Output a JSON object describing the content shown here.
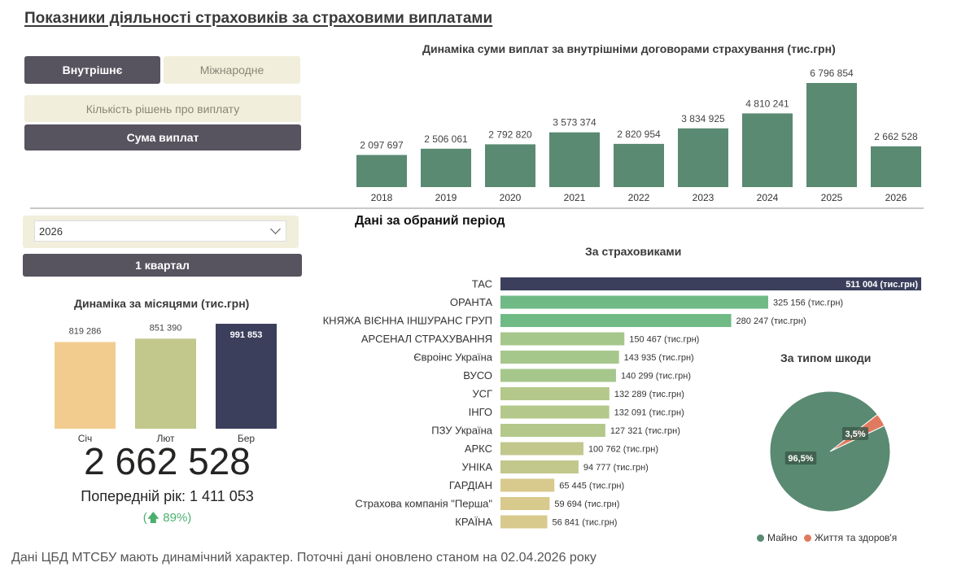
{
  "page_title": "Показники діяльності страховиків за страховими виплатами",
  "toggle": {
    "domestic": "Внутрішнє",
    "international": "Міжнародне"
  },
  "metric": {
    "count": "Кількість рішень про виплату",
    "sum": "Сума виплат"
  },
  "year_select": {
    "value": "2026"
  },
  "quarter_button": "1 квартал",
  "section_title": "Дані за обраний період",
  "kpi": {
    "value": "2 662 528",
    "previous": "Попередній рік: 1 411 053",
    "change": "(🡅 89%)"
  },
  "footer": "Дані ЦБД МТСБУ мають динамічний характер. Поточні дані оновлено станом на 02.04.2026 року",
  "colors": {
    "green": "#5a8a72",
    "navy": "#3b3f5c",
    "accent_orange": "#e07a5f"
  },
  "chart_data": [
    {
      "type": "bar",
      "title": "Динаміка суми виплат за внутрішніми договорами страхування (тис.грн)",
      "categories": [
        "2018",
        "2019",
        "2020",
        "2021",
        "2022",
        "2023",
        "2024",
        "2025",
        "2026"
      ],
      "values": [
        2097697,
        2506061,
        2792820,
        3573374,
        2820954,
        3834925,
        4810241,
        6796854,
        2662528
      ],
      "labels": [
        "2 097 697",
        "2 506 061",
        "2 792 820",
        "3 573 374",
        "2 820 954",
        "3 834 925",
        "4 810 241",
        "6 796 854",
        "2 662 528"
      ]
    },
    {
      "type": "bar",
      "title": "Динаміка за місяцями (тис.грн)",
      "categories": [
        "Січ",
        "Лют",
        "Бер"
      ],
      "values": [
        819286,
        851390,
        991853
      ],
      "labels": [
        "819 286",
        "851 390",
        "991 853"
      ],
      "colors": [
        "#f2cc8f",
        "#c2c78c",
        "#3b3f5c"
      ]
    },
    {
      "type": "bar",
      "orientation": "horizontal",
      "title": "За страховиками",
      "categories": [
        "ТАС",
        "ОРАНТА",
        "КНЯЖА ВІЄННА ІНШУРАНС ГРУП",
        "АРСЕНАЛ СТРАХУВАННЯ",
        "Євроінс Україна",
        "ВУСО",
        "УСГ",
        "ІНГО",
        "ПЗУ Україна",
        "АРКС",
        "УНІКА",
        "ГАРДІАН",
        "Страхова компанія \"Перша\"",
        "КРАЇНА"
      ],
      "values": [
        511004,
        325156,
        280247,
        150467,
        143935,
        140299,
        132289,
        132091,
        127321,
        100762,
        94777,
        65445,
        59694,
        56841
      ],
      "labels": [
        "511 004 (тис.грн)",
        "325 156 (тис.грн)",
        "280 247 (тис.грн)",
        "150 467 (тис.грн)",
        "143 935 (тис.грн)",
        "140 299 (тис.грн)",
        "132 289 (тис.грн)",
        "132 091 (тис.грн)",
        "127 321 (тис.грн)",
        "100 762 (тис.грн)",
        "94 777 (тис.грн)",
        "65 445 (тис.грн)",
        "59 694 (тис.грн)",
        "56 841 (тис.грн)"
      ],
      "colors": [
        "#3b3f5c",
        "#6fba85",
        "#6fba85",
        "#a6c78b",
        "#a6c78b",
        "#a6c78b",
        "#b3c88a",
        "#b3c88a",
        "#b3c88a",
        "#c2c78c",
        "#c2c78c",
        "#d8c98d",
        "#d8c98d",
        "#d8c98d"
      ]
    },
    {
      "type": "pie",
      "title": "За типом шкоди",
      "categories": [
        "Майно",
        "Життя та здоров'я"
      ],
      "values": [
        96.5,
        3.5
      ],
      "labels": [
        "96,5%",
        "3,5%"
      ],
      "colors": [
        "#5a8a72",
        "#e07a5f"
      ],
      "legend": "bottom"
    }
  ]
}
